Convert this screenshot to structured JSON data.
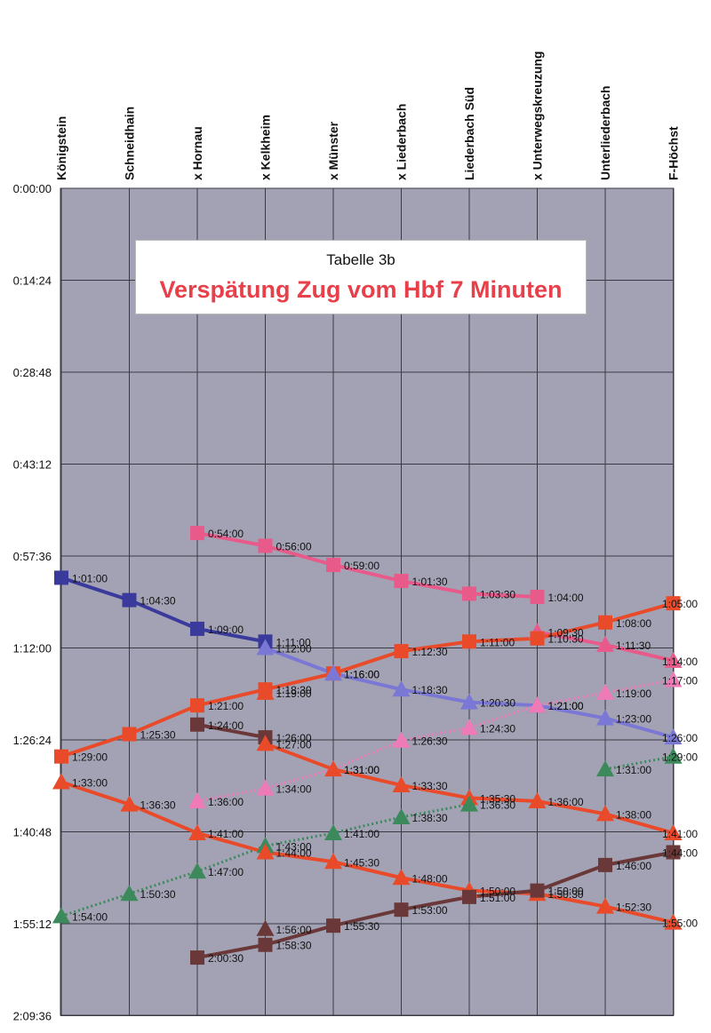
{
  "chart_data": {
    "type": "line",
    "title": "Tabelle 3b",
    "subtitle": "Verspätung Zug vom Hbf 7 Minuten",
    "categories": [
      "Königstein",
      "Schneidhain",
      "x Hornau",
      "x Kelkheim",
      "x Münster",
      "x Liederbach",
      "Liederbach Süd",
      "x Unterwegskreuzung",
      "Unterliederbach",
      "F-Höchst"
    ],
    "y_ticks": [
      "0:00:00",
      "0:14:24",
      "0:28:48",
      "0:43:12",
      "0:57:36",
      "1:12:00",
      "1:26:24",
      "1:40:48",
      "1:55:12",
      "2:09:36"
    ],
    "ylim": [
      "0:00:00",
      "2:09:36"
    ],
    "y_axis_inverted": true,
    "grid": true,
    "colors": {
      "plot_background": "#a3a2b4",
      "grid": "#3a3a44",
      "title_red": "#e8404a"
    },
    "series": [
      {
        "color": "#e85a8a",
        "marker": "square",
        "line_style": "solid",
        "values": [
          null,
          null,
          "0:54:00",
          "0:56:00",
          "0:59:00",
          "1:01:30",
          "1:03:30",
          "1:04:00",
          null,
          null
        ],
        "labels": [
          null,
          null,
          "0:54:00",
          "0:56:00",
          "0:59:00",
          "1:01:30",
          "1:03:30",
          "1:04:00",
          null,
          null
        ]
      },
      {
        "color": "#3a3a9c",
        "marker": "square",
        "line_style": "solid",
        "values": [
          "1:01:00",
          "1:04:30",
          "1:09:00",
          "1:11:00",
          null,
          null,
          null,
          null,
          null,
          null
        ],
        "labels": [
          "1:01:00",
          "1:04:30",
          "1:09:00",
          "1:11:00",
          null,
          null,
          null,
          null,
          null,
          null
        ]
      },
      {
        "color": "#e85a8a",
        "marker": "triangle",
        "line_style": "solid",
        "values": [
          null,
          null,
          null,
          null,
          null,
          null,
          null,
          "1:09:30",
          "1:11:30",
          "1:14:00"
        ],
        "labels": [
          null,
          null,
          null,
          null,
          null,
          null,
          null,
          "1:09:30",
          "1:11:30",
          "1:14:00"
        ]
      },
      {
        "color": "#e84a2a",
        "marker": "square",
        "line_style": "solid",
        "values": [
          "1:29:00",
          "1:25:30",
          "1:21:00",
          "1:18:30",
          "1:16:00",
          "1:12:30",
          "1:11:00",
          "1:10:30",
          "1:08:00",
          "1:05:00"
        ],
        "labels": [
          "1:29:00",
          "1:25:30",
          "1:21:00",
          "1:18:30",
          "1:16:00",
          "1:12:30",
          "1:11:00",
          "1:10:30",
          "1:08:00",
          "1:05:00"
        ]
      },
      {
        "color": "#7a78d4",
        "marker": "triangle",
        "line_style": "solid",
        "values": [
          null,
          null,
          null,
          "1:12:00",
          "1:16:00",
          "1:18:30",
          "1:20:30",
          "1:21:00",
          "1:23:00",
          "1:26:00"
        ],
        "labels": [
          null,
          null,
          null,
          "1:12:00",
          "1:16:00",
          "1:18:30",
          "1:20:30",
          "1:21:00",
          "1:23:00",
          "1:26:00"
        ]
      },
      {
        "color": "#ee7ab8",
        "marker": "triangle",
        "line_style": "dotted",
        "values": [
          null,
          null,
          "1:36:00",
          "1:34:00",
          "1:31:00",
          "1:26:30",
          "1:24:30",
          "1:21:00",
          "1:19:00",
          "1:17:00"
        ],
        "labels": [
          null,
          null,
          "1:36:00",
          "1:34:00",
          "1:31:00",
          "1:26:30",
          "1:24:30",
          "1:21:00",
          "1:19:00",
          "1:17:00"
        ]
      },
      {
        "color": "#e84a2a",
        "marker": "triangle",
        "line_style": "solid",
        "values": [
          null,
          null,
          null,
          "1:19:00",
          null,
          null,
          null,
          null,
          null,
          null
        ],
        "labels": [
          null,
          null,
          null,
          "1:19:00",
          null,
          null,
          null,
          null,
          null,
          null
        ]
      },
      {
        "color": "#6a3838",
        "marker": "square",
        "line_style": "solid",
        "values": [
          null,
          null,
          "1:24:00",
          "1:26:00",
          null,
          null,
          null,
          null,
          null,
          null
        ],
        "labels": [
          null,
          null,
          "1:24:00",
          "1:26:00",
          null,
          null,
          null,
          null,
          null,
          null
        ]
      },
      {
        "color": "#e84a2a",
        "marker": "triangle",
        "line_style": "solid",
        "values": [
          null,
          null,
          null,
          "1:27:00",
          "1:31:00",
          "1:33:30",
          "1:35:30",
          "1:36:00",
          "1:38:00",
          "1:41:00"
        ],
        "labels": [
          null,
          null,
          null,
          "1:27:00",
          "1:31:00",
          "1:33:30",
          "1:35:30",
          "1:36:00",
          "1:38:00",
          "1:41:00"
        ]
      },
      {
        "color": "#3c8a5c",
        "marker": "triangle",
        "line_style": "dotted",
        "values": [
          "1:54:00",
          "1:50:30",
          "1:47:00",
          "1:43:00",
          "1:41:00",
          "1:38:30",
          "1:36:30",
          null,
          "1:31:00",
          "1:29:00"
        ],
        "labels": [
          "1:54:00",
          "1:50:30",
          "1:47:00",
          "1:43:00",
          "1:41:00",
          "1:38:30",
          "1:36:30",
          null,
          "1:31:00",
          "1:29:00"
        ]
      },
      {
        "color": "#e84a2a",
        "marker": "triangle",
        "line_style": "solid",
        "values": [
          "1:33:00",
          "1:36:30",
          "1:41:00",
          "1:44:00",
          "1:45:30",
          "1:48:00",
          "1:50:00",
          "1:50:30",
          "1:52:30",
          "1:55:00"
        ],
        "labels": [
          "1:33:00",
          "1:36:30",
          "1:41:00",
          "1:44:00",
          "1:45:30",
          "1:48:00",
          "1:50:00",
          "1:50:30",
          "1:52:30",
          "1:55:00"
        ]
      },
      {
        "color": "#6a3838",
        "marker": "square",
        "line_style": "solid",
        "values": [
          null,
          null,
          "2:00:30",
          "1:58:30",
          "1:55:30",
          "1:53:00",
          "1:51:00",
          "1:50:00",
          "1:46:00",
          "1:44:00"
        ],
        "labels": [
          null,
          null,
          "2:00:30",
          "1:58:30",
          "1:55:30",
          "1:53:00",
          "1:51:00",
          "1:50:00",
          "1:46:00",
          "1:44:00"
        ]
      },
      {
        "color": "#6a3838",
        "marker": "triangle",
        "line_style": "none",
        "values": [
          null,
          null,
          null,
          "1:56:00",
          null,
          null,
          null,
          null,
          null,
          null
        ],
        "labels": [
          null,
          null,
          null,
          "1:56:00",
          null,
          null,
          null,
          null,
          null,
          null
        ]
      }
    ]
  }
}
